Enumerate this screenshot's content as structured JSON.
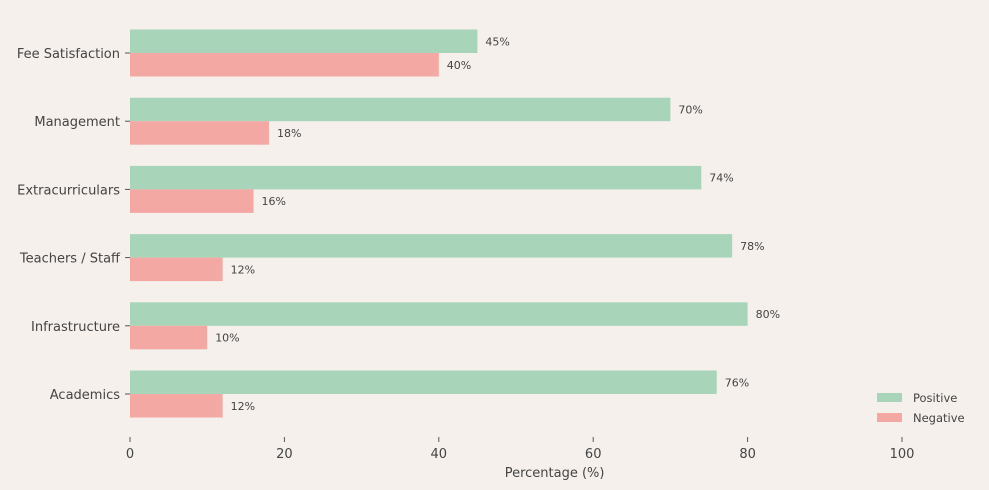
{
  "chart_data": {
    "type": "bar",
    "orientation": "horizontal",
    "title": "",
    "xlabel": "Percentage (%)",
    "ylabel": "",
    "xlim": [
      0,
      110
    ],
    "xticks": [
      0,
      20,
      40,
      60,
      80,
      100
    ],
    "grid": false,
    "legend_position": "bottom-right",
    "categories": [
      "Fee Satisfaction",
      "Management",
      "Extracurriculars",
      "Teachers / Staff",
      "Infrastructure",
      "Academics"
    ],
    "series": [
      {
        "name": "Positive",
        "color": "#a8d5b9",
        "values": [
          45,
          70,
          74,
          78,
          80,
          76
        ],
        "labels": [
          "45%",
          "70%",
          "74%",
          "78%",
          "80%",
          "76%"
        ]
      },
      {
        "name": "Negative",
        "color": "#f4a8a4",
        "values": [
          40,
          18,
          16,
          12,
          10,
          12
        ],
        "labels": [
          "40%",
          "18%",
          "16%",
          "12%",
          "10%",
          "12%"
        ]
      }
    ]
  }
}
